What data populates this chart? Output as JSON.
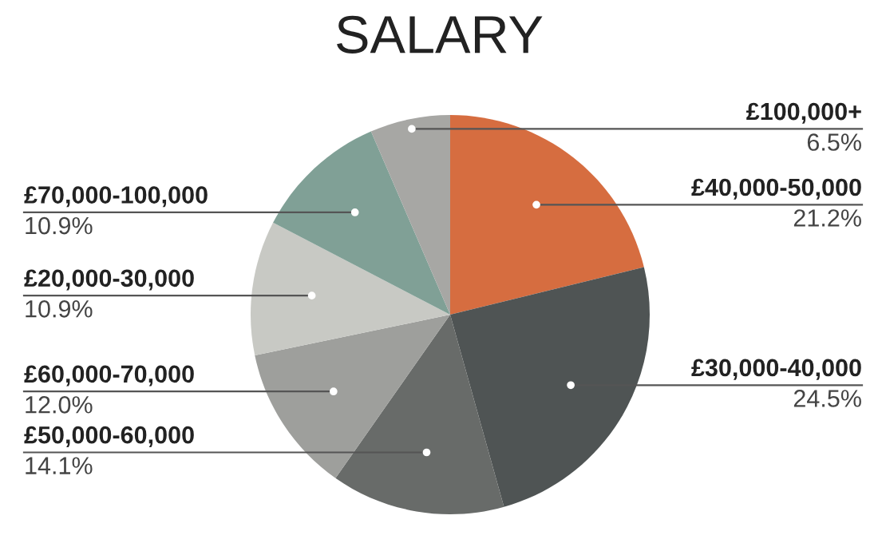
{
  "chart_data": {
    "type": "pie",
    "title": "SALARY",
    "categories": [
      "£40,000-50,000",
      "£30,000-40,000",
      "£50,000-60,000",
      "£60,000-70,000",
      "£20,000-30,000",
      "£70,000-100,000",
      "£100,000+"
    ],
    "values": [
      21.2,
      24.5,
      14.1,
      12.0,
      10.9,
      10.9,
      6.5
    ],
    "value_labels": [
      "21.2%",
      "24.5%",
      "14.1%",
      "12.0%",
      "10.9%",
      "10.9%",
      "6.5%"
    ],
    "colors": [
      "#d66d40",
      "#4f5454",
      "#686b69",
      "#9e9f9c",
      "#c8c9c4",
      "#80a096",
      "#a7a7a4"
    ],
    "legend": false
  }
}
